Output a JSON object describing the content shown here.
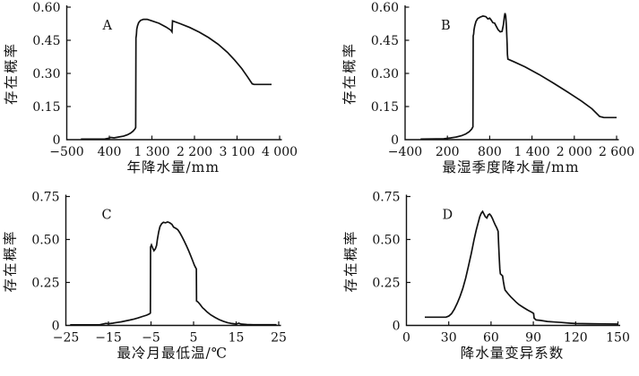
{
  "figure": {
    "background": "#ffffff",
    "line_color": "#111111",
    "text_color": "#111111",
    "description": "Four-panel probability-of-presence response curves",
    "shared_ylabel": "存在概率"
  },
  "chart_data": [
    {
      "type": "line",
      "panel_label": "A",
      "xlabel": "年降水量/mm",
      "ylabel": "存在概率",
      "xlim": [
        -500,
        4000
      ],
      "ylim": [
        0,
        0.6
      ],
      "xticks": [
        -500,
        400,
        1300,
        2200,
        3100,
        4000
      ],
      "xtick_labels": [
        "−500",
        "400",
        "1 300",
        "2 200",
        "3 100",
        "4 000"
      ],
      "yticks": [
        0,
        0.15,
        0.3,
        0.45,
        0.6
      ],
      "ytick_labels": [
        "0",
        "0.15",
        "0.30",
        "0.45",
        "0.60"
      ],
      "grid": false,
      "legend": "none",
      "series": [
        {
          "name": "存在概率",
          "points": [
            [
              -200,
              0.003
            ],
            [
              300,
              0.003
            ],
            [
              380,
              0.006
            ],
            [
              430,
              0.01
            ],
            [
              500,
              0.008
            ],
            [
              600,
              0.012
            ],
            [
              700,
              0.016
            ],
            [
              780,
              0.022
            ],
            [
              850,
              0.03
            ],
            [
              900,
              0.038
            ],
            [
              940,
              0.048
            ],
            [
              958,
              0.055
            ],
            [
              962,
              0.46
            ],
            [
              972,
              0.475
            ],
            [
              980,
              0.5
            ],
            [
              995,
              0.515
            ],
            [
              1020,
              0.53
            ],
            [
              1060,
              0.54
            ],
            [
              1120,
              0.545
            ],
            [
              1200,
              0.545
            ],
            [
              1300,
              0.538
            ],
            [
              1450,
              0.527
            ],
            [
              1600,
              0.51
            ],
            [
              1700,
              0.496
            ],
            [
              1725,
              0.488
            ],
            [
              1735,
              0.538
            ],
            [
              1900,
              0.525
            ],
            [
              2100,
              0.508
            ],
            [
              2300,
              0.487
            ],
            [
              2500,
              0.462
            ],
            [
              2700,
              0.432
            ],
            [
              2900,
              0.395
            ],
            [
              3050,
              0.36
            ],
            [
              3200,
              0.322
            ],
            [
              3320,
              0.285
            ],
            [
              3420,
              0.253
            ],
            [
              3460,
              0.25
            ],
            [
              3830,
              0.25
            ]
          ]
        }
      ]
    },
    {
      "type": "line",
      "panel_label": "B",
      "xlabel": "最湿季度降水量/mm",
      "ylabel": "存在概率",
      "xlim": [
        -400,
        2600
      ],
      "ylim": [
        0,
        0.6
      ],
      "xticks": [
        -400,
        200,
        800,
        1400,
        2000,
        2600
      ],
      "xtick_labels": [
        "−400",
        "200",
        "800",
        "1 400",
        "2 000",
        "2 600"
      ],
      "yticks": [
        0,
        0.15,
        0.3,
        0.45,
        0.6
      ],
      "ytick_labels": [
        "0",
        "0.15",
        "0.30",
        "0.45",
        "0.60"
      ],
      "grid": false,
      "legend": "none",
      "series": [
        {
          "name": "存在概率",
          "points": [
            [
              -180,
              0.003
            ],
            [
              150,
              0.004
            ],
            [
              250,
              0.008
            ],
            [
              330,
              0.012
            ],
            [
              400,
              0.018
            ],
            [
              460,
              0.026
            ],
            [
              510,
              0.036
            ],
            [
              545,
              0.048
            ],
            [
              562,
              0.058
            ],
            [
              566,
              0.47
            ],
            [
              572,
              0.478
            ],
            [
              578,
              0.497
            ],
            [
              588,
              0.515
            ],
            [
              605,
              0.535
            ],
            [
              630,
              0.548
            ],
            [
              665,
              0.555
            ],
            [
              705,
              0.56
            ],
            [
              745,
              0.557
            ],
            [
              775,
              0.547
            ],
            [
              800,
              0.55
            ],
            [
              820,
              0.542
            ],
            [
              845,
              0.53
            ],
            [
              870,
              0.528
            ],
            [
              895,
              0.512
            ],
            [
              920,
              0.498
            ],
            [
              950,
              0.488
            ],
            [
              975,
              0.49
            ],
            [
              995,
              0.52
            ],
            [
              1008,
              0.558
            ],
            [
              1018,
              0.573
            ],
            [
              1028,
              0.56
            ],
            [
              1038,
              0.51
            ],
            [
              1046,
              0.44
            ],
            [
              1052,
              0.385
            ],
            [
              1058,
              0.365
            ],
            [
              1150,
              0.352
            ],
            [
              1300,
              0.33
            ],
            [
              1500,
              0.295
            ],
            [
              1700,
              0.257
            ],
            [
              1900,
              0.217
            ],
            [
              2100,
              0.175
            ],
            [
              2250,
              0.14
            ],
            [
              2360,
              0.105
            ],
            [
              2420,
              0.1
            ],
            [
              2600,
              0.1
            ]
          ]
        }
      ]
    },
    {
      "type": "line",
      "panel_label": "C",
      "xlabel": "最冷月最低温/℃",
      "ylabel": "存在概率",
      "xlim": [
        -25,
        25
      ],
      "ylim": [
        0,
        0.75
      ],
      "xticks": [
        -25,
        -15,
        -5,
        5,
        15,
        25
      ],
      "xtick_labels": [
        "−25",
        "−15",
        "−5",
        "5",
        "15",
        "25"
      ],
      "yticks": [
        0,
        0.25,
        0.5,
        0.75
      ],
      "ytick_labels": [
        "0",
        "0.25",
        "0.50",
        "0.75"
      ],
      "grid": false,
      "legend": "none",
      "series": [
        {
          "name": "存在概率",
          "points": [
            [
              -24,
              0.003
            ],
            [
              -17,
              0.004
            ],
            [
              -15.6,
              0.012
            ],
            [
              -15,
              0.01
            ],
            [
              -14,
              0.013
            ],
            [
              -13,
              0.017
            ],
            [
              -12,
              0.021
            ],
            [
              -11,
              0.026
            ],
            [
              -10,
              0.031
            ],
            [
              -9,
              0.037
            ],
            [
              -8,
              0.044
            ],
            [
              -7,
              0.052
            ],
            [
              -6,
              0.06
            ],
            [
              -5.3,
              0.068
            ],
            [
              -5.15,
              0.072
            ],
            [
              -5.1,
              0.455
            ],
            [
              -4.9,
              0.468
            ],
            [
              -4.6,
              0.45
            ],
            [
              -4.3,
              0.435
            ],
            [
              -4.0,
              0.445
            ],
            [
              -3.7,
              0.465
            ],
            [
              -3.5,
              0.5
            ],
            [
              -3.2,
              0.545
            ],
            [
              -2.9,
              0.575
            ],
            [
              -2.5,
              0.592
            ],
            [
              -2.1,
              0.6
            ],
            [
              -1.6,
              0.597
            ],
            [
              -1.1,
              0.602
            ],
            [
              -0.6,
              0.597
            ],
            [
              -0.1,
              0.588
            ],
            [
              0.3,
              0.572
            ],
            [
              0.8,
              0.565
            ],
            [
              1.3,
              0.557
            ],
            [
              1.8,
              0.538
            ],
            [
              2.3,
              0.515
            ],
            [
              2.8,
              0.49
            ],
            [
              3.3,
              0.465
            ],
            [
              3.8,
              0.437
            ],
            [
              4.3,
              0.407
            ],
            [
              4.8,
              0.375
            ],
            [
              5.2,
              0.35
            ],
            [
              5.5,
              0.335
            ],
            [
              5.65,
              0.328
            ],
            [
              5.7,
              0.142
            ],
            [
              6.1,
              0.135
            ],
            [
              6.6,
              0.12
            ],
            [
              7.1,
              0.103
            ],
            [
              7.6,
              0.092
            ],
            [
              8.1,
              0.08
            ],
            [
              9,
              0.062
            ],
            [
              10,
              0.047
            ],
            [
              11,
              0.034
            ],
            [
              12,
              0.024
            ],
            [
              13,
              0.016
            ],
            [
              14,
              0.011
            ],
            [
              15,
              0.008
            ],
            [
              15.6,
              0.013
            ],
            [
              16.2,
              0.008
            ],
            [
              17.5,
              0.005
            ],
            [
              19,
              0.004
            ],
            [
              24.5,
              0.004
            ]
          ]
        }
      ]
    },
    {
      "type": "line",
      "panel_label": "D",
      "xlabel": "降水量变异系数",
      "ylabel": "存在概率",
      "xlim": [
        0,
        150
      ],
      "ylim": [
        0,
        0.75
      ],
      "xticks": [
        0,
        30,
        60,
        90,
        120,
        150
      ],
      "xtick_labels": [
        "0",
        "30",
        "60",
        "90",
        "120",
        "150"
      ],
      "yticks": [
        0,
        0.25,
        0.5,
        0.75
      ],
      "ytick_labels": [
        "0",
        "0.25",
        "0.50",
        "0.75"
      ],
      "grid": false,
      "legend": "none",
      "series": [
        {
          "name": "存在概率",
          "points": [
            [
              13,
              0.048
            ],
            [
              28,
              0.048
            ],
            [
              30,
              0.054
            ],
            [
              32,
              0.068
            ],
            [
              34,
              0.095
            ],
            [
              36,
              0.128
            ],
            [
              38,
              0.168
            ],
            [
              40,
              0.215
            ],
            [
              42,
              0.275
            ],
            [
              44,
              0.345
            ],
            [
              46,
              0.42
            ],
            [
              48,
              0.5
            ],
            [
              49.5,
              0.555
            ],
            [
              51,
              0.6
            ],
            [
              52,
              0.632
            ],
            [
              53,
              0.652
            ],
            [
              54,
              0.663
            ],
            [
              55,
              0.648
            ],
            [
              56,
              0.632
            ],
            [
              57,
              0.625
            ],
            [
              58,
              0.643
            ],
            [
              59,
              0.648
            ],
            [
              60,
              0.638
            ],
            [
              61,
              0.622
            ],
            [
              62,
              0.603
            ],
            [
              63,
              0.585
            ],
            [
              64,
              0.568
            ],
            [
              65,
              0.548
            ],
            [
              65.4,
              0.47
            ],
            [
              65.8,
              0.4
            ],
            [
              66.2,
              0.33
            ],
            [
              66.6,
              0.3
            ],
            [
              68.2,
              0.288
            ],
            [
              68.8,
              0.255
            ],
            [
              69.4,
              0.225
            ],
            [
              70,
              0.205
            ],
            [
              72,
              0.185
            ],
            [
              74,
              0.166
            ],
            [
              76,
              0.15
            ],
            [
              78,
              0.134
            ],
            [
              80,
              0.12
            ],
            [
              83,
              0.104
            ],
            [
              86,
              0.089
            ],
            [
              89,
              0.076
            ],
            [
              90.2,
              0.07
            ],
            [
              90.6,
              0.042
            ],
            [
              92,
              0.032
            ],
            [
              95,
              0.029
            ],
            [
              100,
              0.023
            ],
            [
              105,
              0.02
            ],
            [
              110,
              0.017
            ],
            [
              116,
              0.013
            ],
            [
              120,
              0.011
            ],
            [
              130,
              0.01
            ],
            [
              140,
              0.009
            ],
            [
              150,
              0.008
            ]
          ]
        }
      ]
    }
  ]
}
